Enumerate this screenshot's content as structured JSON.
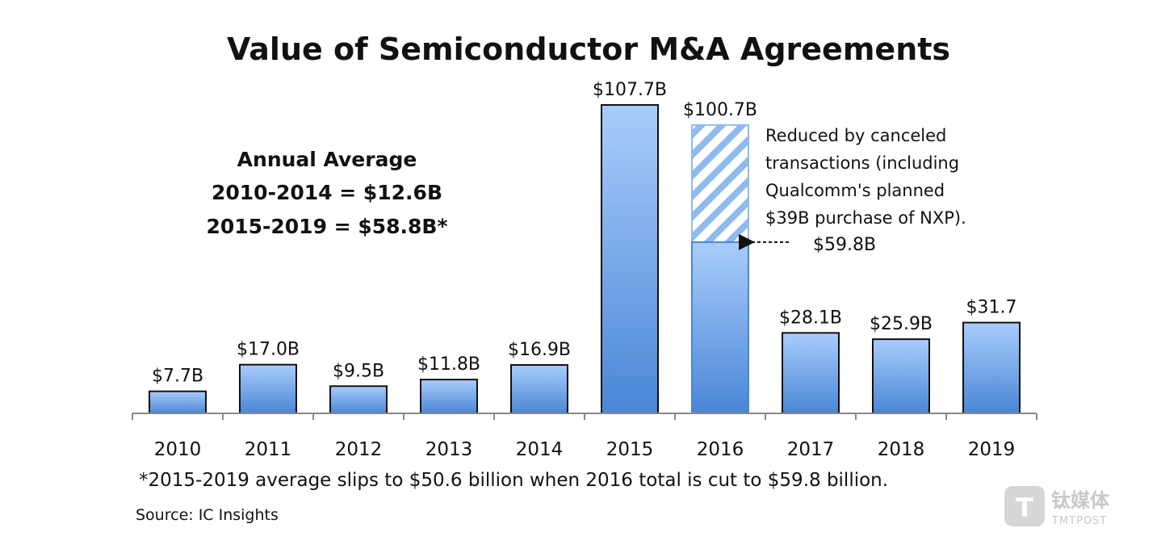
{
  "chart_data": {
    "type": "bar",
    "title": "Value of Semiconductor M&A Agreements",
    "categories": [
      "2010",
      "2011",
      "2012",
      "2013",
      "2014",
      "2015",
      "2016",
      "2017",
      "2018",
      "2019"
    ],
    "values": [
      7.7,
      17.0,
      9.5,
      11.8,
      16.9,
      107.7,
      100.7,
      28.1,
      25.9,
      31.7
    ],
    "value_labels": [
      "$7.7B",
      "$17.0B",
      "$9.5B",
      "$11.8B",
      "$16.9B",
      "$107.7B",
      "$100.7B",
      "$28.1B",
      "$25.9B",
      "$31.7"
    ],
    "reduced": {
      "category": "2016",
      "value": 59.8,
      "label": "$59.8B",
      "note_lines": [
        "Reduced by canceled",
        "transactions (including",
        "Qualcomm's planned",
        "$39B purchase of NXP)."
      ]
    },
    "annual_average_lines": [
      "Annual Average",
      "2010-2014 = $12.6B",
      "2015-2019 = $58.8B*"
    ],
    "footnote": "*2015-2019 average slips to $50.6 billion when 2016 total is cut to $59.8 billion.",
    "source": "Source: IC Insights",
    "ylim": [
      0,
      107.7
    ],
    "colors": {
      "bar_top": "#a9cdfb",
      "bar_bottom": "#4a86d6",
      "bar_border": "#111111",
      "hatch": "#8fbaf0"
    }
  },
  "watermark": {
    "name": "钛媒体",
    "sub": "TMTPOST"
  }
}
